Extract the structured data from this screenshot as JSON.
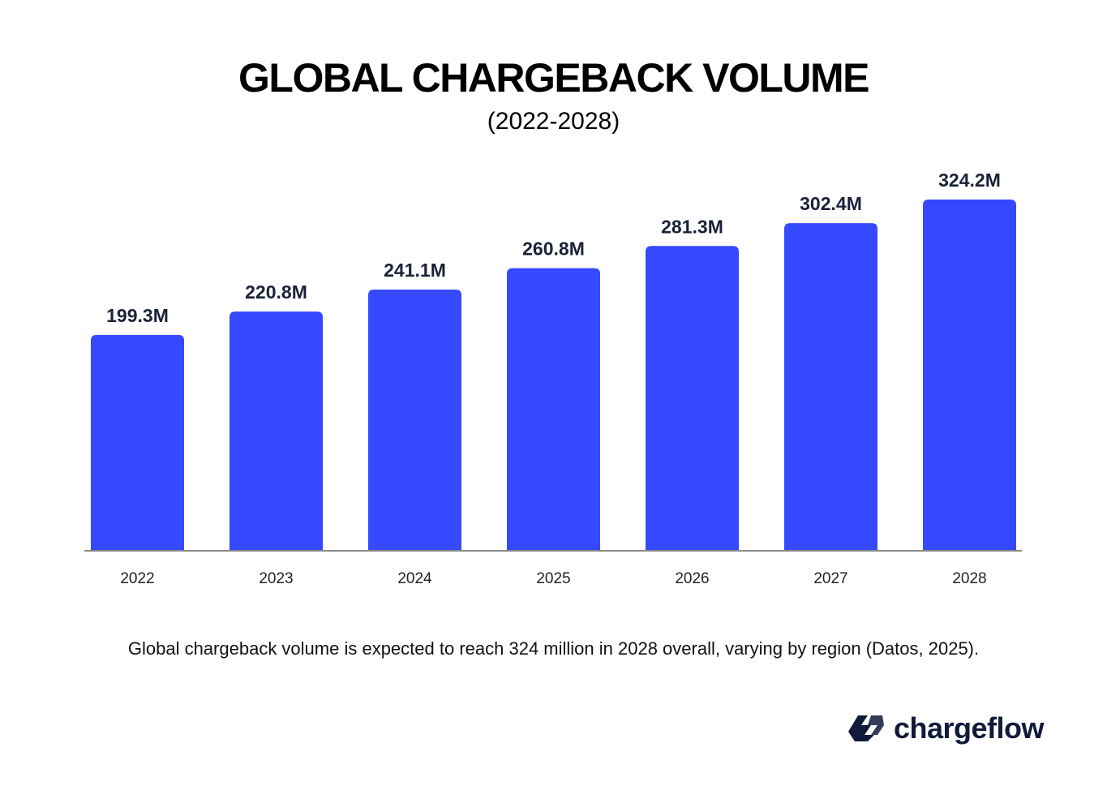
{
  "chart_data": {
    "type": "bar",
    "title": "GLOBAL CHARGEBACK VOLUME",
    "subtitle": "(2022-2028)",
    "categories": [
      "2022",
      "2023",
      "2024",
      "2025",
      "2026",
      "2027",
      "2028"
    ],
    "values": [
      199.3,
      220.8,
      241.1,
      260.8,
      281.3,
      302.4,
      324.2
    ],
    "value_labels": [
      "199.3M",
      "220.8M",
      "241.1M",
      "260.8M",
      "281.3M",
      "302.4M",
      "324.2M"
    ],
    "unit": "M",
    "xlabel": "",
    "ylabel": "",
    "ylim": [
      0,
      370
    ],
    "grid": false,
    "legend": "none",
    "bar_color": "#3649ff",
    "label_color": "#1a2238"
  },
  "caption": "Global chargeback volume is expected to reach 324 million in 2028 overall, varying by region (Datos, 2025).",
  "brand": {
    "name": "chargeflow",
    "logo_color": "#111a3a"
  }
}
